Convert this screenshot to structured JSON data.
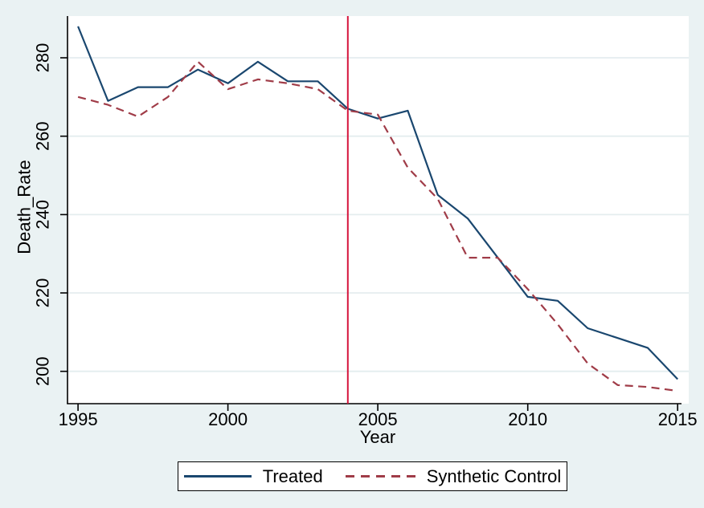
{
  "chart_data": {
    "type": "line",
    "title": "",
    "xlabel": "Year",
    "ylabel": "Death_Rate",
    "x": [
      1995,
      1996,
      1997,
      1998,
      1999,
      2000,
      2001,
      2002,
      2003,
      2004,
      2005,
      2006,
      2007,
      2008,
      2009,
      2010,
      2011,
      2012,
      2013,
      2014,
      2015
    ],
    "series": [
      {
        "name": "Treated",
        "style": "solid",
        "color": "#1a476f",
        "values": [
          288,
          269,
          272.5,
          272.5,
          277,
          273.5,
          279,
          274,
          274,
          267,
          264.5,
          266.5,
          245,
          239,
          229,
          219,
          218,
          211,
          208.5,
          206,
          198
        ]
      },
      {
        "name": "Synthetic Control",
        "style": "dashed",
        "color": "#a03c48",
        "values": [
          270,
          268,
          265,
          270,
          279,
          272,
          274.5,
          273.5,
          272,
          266.5,
          265.5,
          252,
          244,
          229,
          229,
          221,
          212,
          202,
          196.5,
          196,
          195
        ]
      }
    ],
    "vline": {
      "x": 2004,
      "color": "#d6143c",
      "label": ""
    },
    "xticks": [
      "1995",
      "2000",
      "2005",
      "2010",
      "2015"
    ],
    "xtick_values": [
      1995,
      2000,
      2005,
      2010,
      2015
    ],
    "yticks": [
      "200",
      "220",
      "240",
      "260",
      "280"
    ],
    "ytick_values": [
      200,
      220,
      240,
      260,
      280
    ],
    "xlim": [
      1994.65,
      2015.37
    ],
    "ylim": [
      191.75,
      290.65
    ],
    "grid": "horizontal",
    "legend_position": "bottom-center",
    "colors": {
      "background": "#eaf2f3",
      "plot_background": "#ffffff",
      "grid": "#e4edef",
      "axis": "#000000",
      "text": "#000000",
      "legend_background": "#ffffff",
      "legend_border": "#000000"
    }
  }
}
